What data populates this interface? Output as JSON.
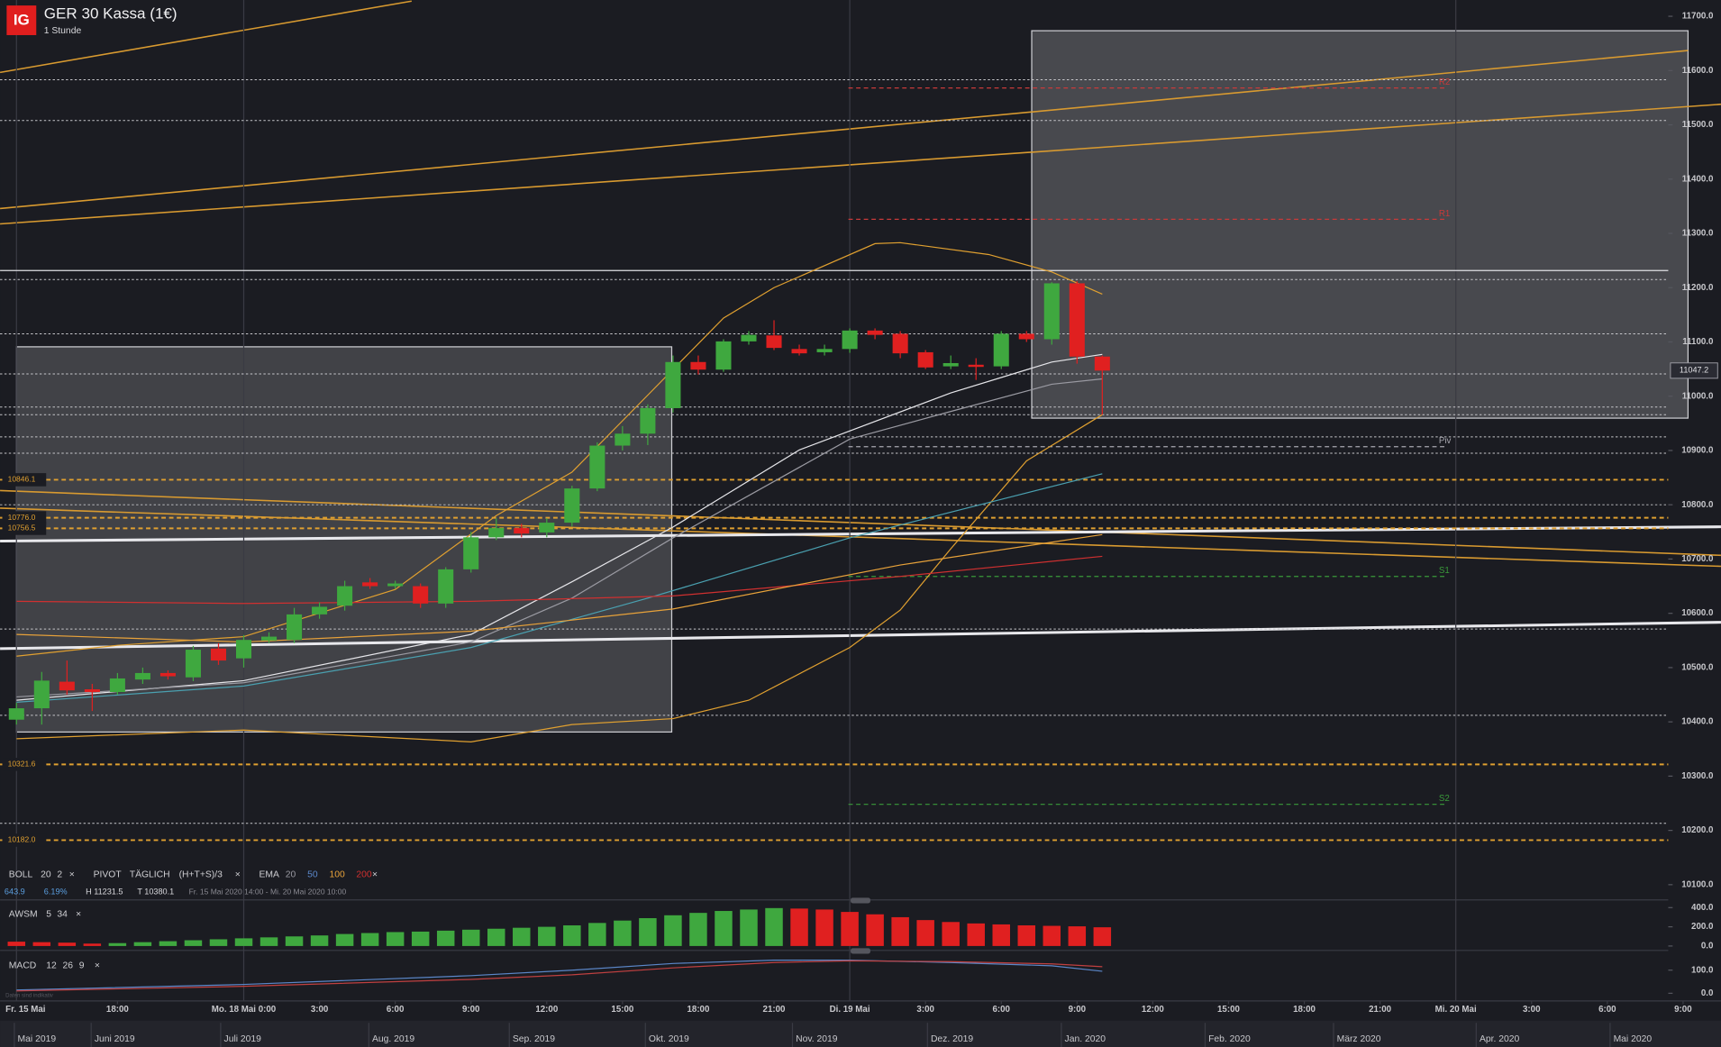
{
  "logo": "IG",
  "close": "×",
  "note": "Daten sind indikativ",
  "indicators": {
    "boll": {
      "name": "BOLL",
      "params": [
        20,
        2
      ]
    },
    "pivot": {
      "name": "PIVOT",
      "mode": "TÄGLICH",
      "formula": "(H+T+S)/3"
    },
    "ema": {
      "name": "EMA",
      "periods": [
        {
          "value": 20,
          "color": "#9a9aa2"
        },
        {
          "value": 50,
          "color": "#5b87c9"
        },
        {
          "value": 100,
          "color": "#e8a23a"
        },
        {
          "value": 200,
          "color": "#d03030"
        }
      ]
    },
    "stats": {
      "change": 643.9,
      "change_pct": {
        "value": 6.19,
        "label": "6.19%"
      },
      "high": "H 11231.5",
      "low": "T 10380.1",
      "range": "Fr. 15 Mai 2020 14:00 - Mi. 20 Mai 2020 10:00"
    }
  },
  "timeline": [
    "Mai 2019",
    "Juni 2019",
    "Juli 2019",
    "Aug. 2019",
    "Sep. 2019",
    "Okt. 2019",
    "Nov. 2019",
    "Dez. 2019",
    "Jan. 2020",
    "Feb. 2020",
    "März 2020",
    "Apr. 2020",
    "Mai 2020"
  ],
  "chart_data": [
    {
      "type": "candlestick",
      "title": "GER 30 Kassa (1€)",
      "subtitle": "1 Stunde",
      "open": [
        10404,
        10425,
        10474,
        10460,
        10455,
        10478,
        10490,
        10482,
        10535,
        10517,
        10550,
        10551,
        10598,
        10614,
        10657,
        10650,
        10650,
        10618,
        10681,
        10740,
        10757,
        10749,
        10767,
        10830,
        10909,
        10931,
        10978,
        11063,
        11049,
        11101,
        11112,
        11087,
        11081,
        11087,
        11121,
        11115,
        11081,
        11055,
        11058,
        11055,
        11115,
        11105,
        11208,
        11073
      ],
      "high": [
        10435,
        10492,
        10513,
        10470,
        10490,
        10500,
        10495,
        10540,
        10545,
        10560,
        10565,
        10610,
        10620,
        10660,
        10665,
        10660,
        10655,
        10685,
        10750,
        10775,
        10765,
        10775,
        10835,
        10915,
        10945,
        10985,
        11075,
        11075,
        11105,
        11120,
        11140,
        11095,
        11095,
        11125,
        11125,
        11120,
        11085,
        11075,
        11070,
        11120,
        11120,
        11210,
        11212,
        11075
      ],
      "low": [
        10395,
        10395,
        10450,
        10420,
        10450,
        10470,
        10478,
        10475,
        10505,
        10500,
        10545,
        10545,
        10590,
        10605,
        10645,
        10645,
        10610,
        10610,
        10675,
        10735,
        10740,
        10740,
        10760,
        10825,
        10900,
        10910,
        10970,
        11040,
        11045,
        11095,
        11085,
        11075,
        11075,
        11080,
        11105,
        11070,
        11050,
        11050,
        11030,
        11050,
        11100,
        11095,
        11060,
        10966
      ],
      "close": [
        10425,
        10476,
        10458,
        10455,
        10480,
        10490,
        10484,
        10533,
        10513,
        10551,
        10557,
        10598,
        10612,
        10650,
        10650,
        10655,
        10618,
        10681,
        10740,
        10757,
        10747,
        10767,
        10830,
        10909,
        10931,
        10978,
        11063,
        11049,
        11101,
        11113,
        11089,
        11079,
        11087,
        11121,
        11113,
        11079,
        11053,
        11061,
        11054,
        11115,
        11105,
        11208,
        11073,
        11047.2
      ],
      "up_color": "#3fa83f",
      "down_color": "#e02020",
      "xlim": [
        -0.65,
        67.5
      ],
      "xticks": [
        {
          "value": 0,
          "label": "Fr. 15 Mai"
        },
        {
          "value": 4,
          "label": "18:00"
        },
        {
          "value": 9,
          "label": "Mo. 18 Mai 0:00"
        },
        {
          "value": 12,
          "label": "3:00"
        },
        {
          "value": 15,
          "label": "6:00"
        },
        {
          "value": 18,
          "label": "9:00"
        },
        {
          "value": 21,
          "label": "12:00"
        },
        {
          "value": 24,
          "label": "15:00"
        },
        {
          "value": 27,
          "label": "18:00"
        },
        {
          "value": 30,
          "label": "21:00"
        },
        {
          "value": 33,
          "label": "Di. 19 Mai"
        },
        {
          "value": 36,
          "label": "3:00"
        },
        {
          "value": 39,
          "label": "6:00"
        },
        {
          "value": 42,
          "label": "9:00"
        },
        {
          "value": 45,
          "label": "12:00"
        },
        {
          "value": 48,
          "label": "15:00"
        },
        {
          "value": 51,
          "label": "18:00"
        },
        {
          "value": 54,
          "label": "21:00"
        },
        {
          "value": 57,
          "label": "Mi. 20 Mai"
        },
        {
          "value": 60,
          "label": "3:00"
        },
        {
          "value": 63,
          "label": "6:00"
        },
        {
          "value": 66,
          "label": "9:00"
        }
      ],
      "ylim": [
        10082,
        11730
      ],
      "yticks": [
        {
          "value": 10100,
          "label": "10100.0"
        },
        {
          "value": 10200,
          "label": "10200.0"
        },
        {
          "value": 10300,
          "label": "10300.0"
        },
        {
          "value": 10400,
          "label": "10400.0"
        },
        {
          "value": 10500,
          "label": "10500.0"
        },
        {
          "value": 10600,
          "label": "10600.0"
        },
        {
          "value": 10700,
          "label": "10700.0"
        },
        {
          "value": 10800,
          "label": "10800.0"
        },
        {
          "value": 10900,
          "label": "10900.0"
        },
        {
          "value": 11000,
          "label": "11000.0"
        },
        {
          "value": 11100,
          "label": "11100.0"
        },
        {
          "value": 11200,
          "label": "11200.0"
        },
        {
          "value": 11300,
          "label": "11300.0"
        },
        {
          "value": 11400,
          "label": "11400.0"
        },
        {
          "value": 11500,
          "label": "11500.0"
        },
        {
          "value": 11600,
          "label": "11600.0"
        },
        {
          "value": 11700,
          "label": "11700.0"
        }
      ],
      "last_price": 11047.2,
      "high_line": 11231.5,
      "levels": [
        10846.1,
        {
          "value": 10776,
          "label": "10776.0"
        },
        10756.5,
        10321.6,
        {
          "value": 10182,
          "label": "10182.0"
        }
      ],
      "level_color": "#e0a030",
      "pivots": [
        {
          "label": "R2",
          "value": 11568,
          "color": "#c83a3a"
        },
        {
          "label": "R1",
          "value": 11326,
          "color": "#c83a3a"
        },
        {
          "label": "Piv",
          "value": 10907,
          "color": "#a8a8b0"
        },
        {
          "label": "S1",
          "value": 10668,
          "color": "#3a9a3a"
        },
        {
          "label": "S2",
          "value": 10248,
          "color": "#3a9a3a"
        }
      ],
      "hlines": [
        11583,
        11508,
        11215,
        11115,
        11041,
        10980,
        10966,
        10925,
        10895,
        10800,
        10571,
        10412,
        10213
      ],
      "overlays": [
        {
          "color": "#e0a030",
          "x": [
            0,
            4,
            9,
            15,
            19,
            22,
            25,
            28,
            30,
            34,
            35,
            38.5,
            41,
            43
          ],
          "values": [
            10521,
            10541,
            10557,
            10644,
            10780,
            10860,
            11002,
            11144,
            11200,
            11281,
            11283,
            11261,
            11229,
            11188
          ]
        },
        {
          "color": "#e0a030",
          "x": [
            0,
            9,
            18,
            22,
            26,
            29,
            33,
            35,
            37,
            40,
            43
          ],
          "values": [
            10369,
            10385,
            10363,
            10395,
            10406,
            10440,
            10537,
            10606,
            10719,
            10881,
            10966
          ]
        },
        {
          "color": "#e6e6ea",
          "x": [
            0,
            9,
            18,
            22,
            26,
            31,
            37,
            41,
            43
          ],
          "values": [
            10440,
            10476,
            10561,
            10658,
            10759,
            10901,
            11006,
            11063,
            11077
          ]
        },
        {
          "color": "#9a9aa2",
          "x": [
            0,
            9,
            18,
            22,
            26,
            33,
            37,
            41,
            43
          ],
          "values": [
            10446,
            10472,
            10547,
            10628,
            10739,
            10921,
            10972,
            11022,
            11032
          ]
        },
        {
          "color": "#4aa0b0",
          "x": [
            0,
            9,
            18,
            25,
            33,
            39,
            43
          ],
          "values": [
            10436,
            10466,
            10537,
            10628,
            10739,
            10810,
            10857
          ]
        },
        {
          "color": "#d03030",
          "x": [
            0,
            9,
            18,
            26,
            35,
            43
          ],
          "values": [
            10622,
            10618,
            10622,
            10632,
            10668,
            10705
          ]
        },
        {
          "color": "#e8a23a",
          "x": [
            0,
            9,
            18,
            26,
            35,
            43
          ],
          "values": [
            10561,
            10547,
            10567,
            10608,
            10689,
            10745
          ]
        }
      ]
    },
    {
      "type": "bar",
      "title": "AWSM",
      "params": [
        5,
        34
      ],
      "values": [
        45,
        40,
        35,
        25,
        30,
        40,
        50,
        60,
        70,
        80,
        90,
        100,
        110,
        125,
        135,
        145,
        150,
        160,
        170,
        180,
        190,
        200,
        215,
        240,
        265,
        290,
        320,
        345,
        365,
        380,
        395,
        390,
        380,
        355,
        330,
        300,
        270,
        250,
        235,
        225,
        215,
        210,
        205,
        195
      ],
      "up_color": "#3fa83f",
      "down_color": "#e02020",
      "ylim": [
        -46,
        457
      ],
      "yticks": [
        {
          "value": 0,
          "label": "0.0"
        },
        {
          "value": 200,
          "label": "200.0"
        },
        {
          "value": 400,
          "label": "400.0"
        }
      ]
    },
    {
      "type": "line",
      "title": "MACD",
      "params": [
        12,
        26,
        9
      ],
      "series": [
        {
          "color": "#5b87c9",
          "x": [
            0,
            9,
            18,
            22,
            26,
            30,
            33,
            37,
            41,
            43
          ],
          "values": [
            14,
            38,
            76,
            100,
            129,
            143,
            143,
            133,
            119,
            95
          ]
        },
        {
          "color": "#c04040",
          "x": [
            0,
            9,
            18,
            22,
            26,
            30,
            33,
            37,
            41,
            43
          ],
          "values": [
            10,
            30,
            60,
            80,
            110,
            133,
            140,
            137,
            127,
            115
          ]
        }
      ],
      "ylim": [
        -33,
        171
      ],
      "yticks": [
        {
          "value": 0,
          "label": "0.0"
        },
        {
          "value": 100,
          "label": "100.0"
        }
      ]
    }
  ]
}
